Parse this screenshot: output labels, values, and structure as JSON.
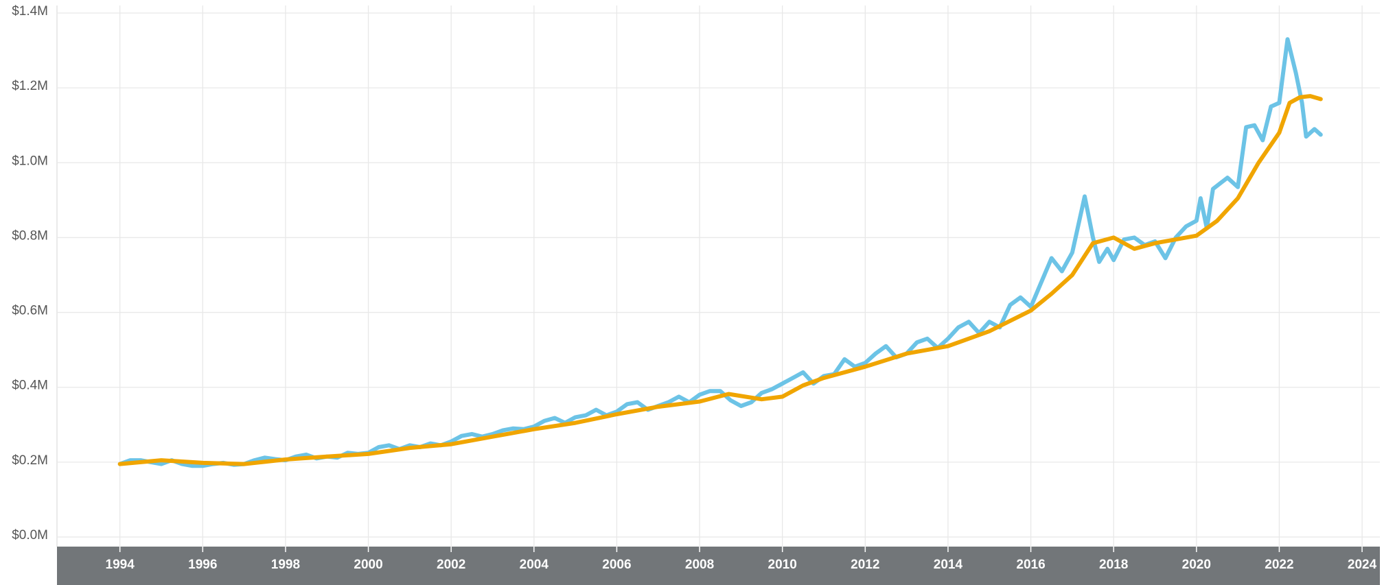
{
  "chart_data": {
    "type": "line",
    "xlim": [
      1992.48,
      2024.43
    ],
    "xticks": [
      1994,
      1996,
      1998,
      2000,
      2002,
      2004,
      2006,
      2008,
      2010,
      2012,
      2014,
      2016,
      2018,
      2020,
      2022,
      2024
    ],
    "ylim": [
      0,
      1400000
    ],
    "yticks": [
      {
        "value": 0,
        "label": "$0.0M"
      },
      {
        "value": 200000,
        "label": "$0.2M"
      },
      {
        "value": 400000,
        "label": "$0.4M"
      },
      {
        "value": 600000,
        "label": "$0.6M"
      },
      {
        "value": 800000,
        "label": "$0.8M"
      },
      {
        "value": 1000000,
        "label": "$1.0M"
      },
      {
        "value": 1200000,
        "label": "$1.2M"
      },
      {
        "value": 1400000,
        "label": "$1.4M"
      }
    ],
    "grid": true,
    "series": [
      {
        "color": "#6cc3e6",
        "x": [
          1994.0,
          1994.25,
          1994.5,
          1994.75,
          1995.0,
          1995.25,
          1995.5,
          1995.75,
          1996.0,
          1996.25,
          1996.5,
          1996.75,
          1997.0,
          1997.25,
          1997.5,
          1997.75,
          1998.0,
          1998.25,
          1998.5,
          1998.75,
          1999.0,
          1999.25,
          1999.5,
          1999.75,
          2000.0,
          2000.25,
          2000.5,
          2000.75,
          2001.0,
          2001.25,
          2001.5,
          2001.75,
          2002.0,
          2002.25,
          2002.5,
          2002.75,
          2003.0,
          2003.25,
          2003.5,
          2003.75,
          2004.0,
          2004.25,
          2004.5,
          2004.75,
          2005.0,
          2005.25,
          2005.5,
          2005.75,
          2006.0,
          2006.25,
          2006.5,
          2006.75,
          2007.0,
          2007.25,
          2007.5,
          2007.75,
          2008.0,
          2008.25,
          2008.5,
          2008.75,
          2009.0,
          2009.25,
          2009.5,
          2009.75,
          2010.0,
          2010.25,
          2010.5,
          2010.75,
          2011.0,
          2011.25,
          2011.5,
          2011.75,
          2012.0,
          2012.25,
          2012.5,
          2012.75,
          2013.0,
          2013.25,
          2013.5,
          2013.75,
          2014.0,
          2014.25,
          2014.5,
          2014.75,
          2015.0,
          2015.25,
          2015.5,
          2015.75,
          2016.0,
          2016.25,
          2016.5,
          2016.75,
          2017.0,
          2017.3,
          2017.5,
          2017.65,
          2017.85,
          2018.0,
          2018.25,
          2018.5,
          2018.75,
          2019.0,
          2019.25,
          2019.5,
          2019.75,
          2020.0,
          2020.1,
          2020.25,
          2020.4,
          2020.75,
          2021.0,
          2021.2,
          2021.4,
          2021.6,
          2021.8,
          2022.0,
          2022.2,
          2022.4,
          2022.55,
          2022.65,
          2022.85,
          2023.0
        ],
        "values": [
          195000,
          205000,
          205000,
          200000,
          195000,
          205000,
          195000,
          190000,
          190000,
          195000,
          198000,
          193000,
          195000,
          205000,
          212000,
          208000,
          205000,
          215000,
          220000,
          210000,
          215000,
          212000,
          225000,
          222000,
          225000,
          240000,
          245000,
          235000,
          245000,
          240000,
          250000,
          245000,
          255000,
          270000,
          275000,
          268000,
          275000,
          285000,
          290000,
          288000,
          295000,
          310000,
          318000,
          305000,
          320000,
          325000,
          340000,
          325000,
          335000,
          355000,
          360000,
          340000,
          350000,
          360000,
          375000,
          360000,
          380000,
          390000,
          390000,
          365000,
          350000,
          360000,
          385000,
          395000,
          410000,
          425000,
          440000,
          410000,
          430000,
          435000,
          475000,
          455000,
          465000,
          490000,
          510000,
          480000,
          490000,
          520000,
          530000,
          505000,
          530000,
          560000,
          575000,
          545000,
          575000,
          560000,
          620000,
          640000,
          615000,
          680000,
          745000,
          710000,
          760000,
          910000,
          800000,
          735000,
          770000,
          740000,
          795000,
          800000,
          780000,
          790000,
          745000,
          800000,
          830000,
          845000,
          905000,
          825000,
          930000,
          960000,
          935000,
          1095000,
          1100000,
          1060000,
          1150000,
          1160000,
          1330000,
          1240000,
          1160000,
          1070000,
          1090000,
          1075000
        ]
      },
      {
        "color": "#f0a500",
        "x": [
          1994.0,
          1995.0,
          1996.0,
          1997.0,
          1998.0,
          1999.0,
          2000.0,
          2001.0,
          2002.0,
          2003.0,
          2004.0,
          2005.0,
          2006.0,
          2007.0,
          2008.0,
          2008.7,
          2009.5,
          2010.0,
          2010.5,
          2011.0,
          2012.0,
          2013.0,
          2014.0,
          2015.0,
          2016.0,
          2016.5,
          2017.0,
          2017.5,
          2018.0,
          2018.5,
          2019.0,
          2020.0,
          2020.5,
          2021.0,
          2021.5,
          2022.0,
          2022.25,
          2022.5,
          2022.75,
          2023.0
        ],
        "values": [
          195000,
          205000,
          198000,
          195000,
          207000,
          215000,
          222000,
          238000,
          248000,
          268000,
          288000,
          305000,
          328000,
          348000,
          362000,
          382000,
          368000,
          375000,
          405000,
          425000,
          455000,
          490000,
          510000,
          550000,
          605000,
          650000,
          700000,
          785000,
          800000,
          770000,
          785000,
          805000,
          845000,
          905000,
          1000000,
          1080000,
          1160000,
          1175000,
          1178000,
          1170000
        ]
      }
    ]
  }
}
